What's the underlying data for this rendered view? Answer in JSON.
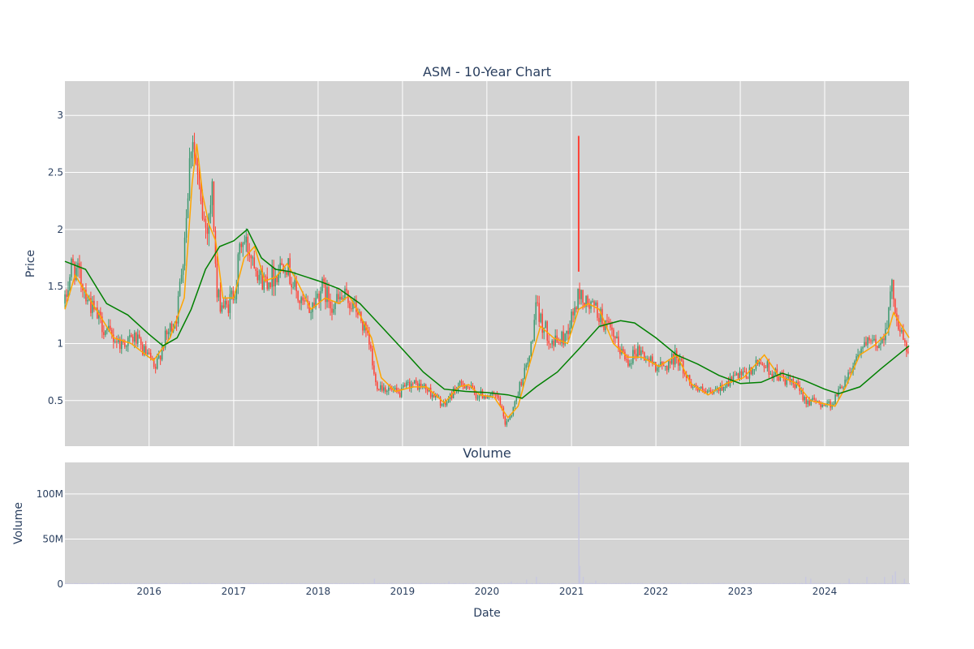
{
  "chart_data": [
    {
      "type": "candlestick",
      "title": "ASM - 10-Year Chart",
      "xlabel": "",
      "ylabel": "Price",
      "x_range": [
        "2015-01-02",
        "2024-12-31"
      ],
      "ylim": [
        0.1,
        3.3
      ],
      "y_ticks": [
        0.5,
        1,
        1.5,
        2,
        2.5,
        3
      ],
      "y_tick_labels": [
        "0.5",
        "1",
        "1.5",
        "2",
        "2.5",
        "3"
      ],
      "grid": true,
      "legend": "none",
      "colors": {
        "increasing": "#3d9970",
        "decreasing": "#ff4136",
        "ma_short": "#ffa500",
        "ma_long": "#008000",
        "plot_bg": "#d3d3d3",
        "grid": "#ffffff"
      },
      "price_path": [
        [
          "2015-01-02",
          1.35
        ],
        [
          "2015-02-01",
          1.7
        ],
        [
          "2015-03-15",
          1.55
        ],
        [
          "2015-05-01",
          1.3
        ],
        [
          "2015-07-01",
          1.1
        ],
        [
          "2015-09-01",
          1.0
        ],
        [
          "2015-11-01",
          1.05
        ],
        [
          "2015-12-01",
          0.95
        ],
        [
          "2016-01-10",
          0.85
        ],
        [
          "2016-01-25",
          0.75
        ],
        [
          "2016-03-01",
          1.0
        ],
        [
          "2016-05-01",
          1.25
        ],
        [
          "2016-06-01",
          1.9
        ],
        [
          "2016-07-05",
          2.9
        ],
        [
          "2016-07-25",
          2.5
        ],
        [
          "2016-08-10",
          2.2
        ],
        [
          "2016-09-05",
          2.0
        ],
        [
          "2016-10-01",
          2.35
        ],
        [
          "2016-10-20",
          1.4
        ],
        [
          "2016-12-01",
          1.3
        ],
        [
          "2017-01-10",
          1.5
        ],
        [
          "2017-02-01",
          1.9
        ],
        [
          "2017-03-01",
          1.85
        ],
        [
          "2017-04-01",
          1.75
        ],
        [
          "2017-05-01",
          1.55
        ],
        [
          "2017-07-01",
          1.6
        ],
        [
          "2017-08-10",
          1.75
        ],
        [
          "2017-09-01",
          1.6
        ],
        [
          "2017-10-15",
          1.35
        ],
        [
          "2017-12-01",
          1.3
        ],
        [
          "2018-01-15",
          1.5
        ],
        [
          "2018-03-01",
          1.35
        ],
        [
          "2018-05-01",
          1.4
        ],
        [
          "2018-06-15",
          1.3
        ],
        [
          "2018-07-15",
          1.15
        ],
        [
          "2018-08-15",
          0.95
        ],
        [
          "2018-09-05",
          0.65
        ],
        [
          "2018-11-01",
          0.6
        ],
        [
          "2018-12-15",
          0.55
        ],
        [
          "2019-02-01",
          0.65
        ],
        [
          "2019-04-01",
          0.62
        ],
        [
          "2019-05-15",
          0.55
        ],
        [
          "2019-07-01",
          0.45
        ],
        [
          "2019-08-15",
          0.6
        ],
        [
          "2019-10-01",
          0.65
        ],
        [
          "2019-11-15",
          0.55
        ],
        [
          "2020-01-01",
          0.55
        ],
        [
          "2020-02-20",
          0.52
        ],
        [
          "2020-03-20",
          0.3
        ],
        [
          "2020-04-20",
          0.4
        ],
        [
          "2020-06-01",
          0.7
        ],
        [
          "2020-07-01",
          0.85
        ],
        [
          "2020-08-01",
          1.3
        ],
        [
          "2020-09-01",
          1.15
        ],
        [
          "2020-10-15",
          1.0
        ],
        [
          "2020-12-01",
          1.05
        ],
        [
          "2021-01-15",
          1.3
        ],
        [
          "2021-02-05",
          1.45
        ],
        [
          "2021-03-01",
          1.35
        ],
        [
          "2021-04-15",
          1.3
        ],
        [
          "2021-06-01",
          1.15
        ],
        [
          "2021-07-15",
          1.0
        ],
        [
          "2021-09-01",
          0.85
        ],
        [
          "2021-10-15",
          0.95
        ],
        [
          "2021-12-01",
          0.85
        ],
        [
          "2022-02-01",
          0.78
        ],
        [
          "2022-04-01",
          0.9
        ],
        [
          "2022-05-15",
          0.7
        ],
        [
          "2022-07-01",
          0.6
        ],
        [
          "2022-08-15",
          0.55
        ],
        [
          "2022-10-01",
          0.6
        ],
        [
          "2022-12-01",
          0.7
        ],
        [
          "2023-02-01",
          0.72
        ],
        [
          "2023-04-01",
          0.85
        ],
        [
          "2023-05-15",
          0.75
        ],
        [
          "2023-07-01",
          0.7
        ],
        [
          "2023-09-01",
          0.62
        ],
        [
          "2023-10-15",
          0.5
        ],
        [
          "2023-12-01",
          0.48
        ],
        [
          "2024-02-01",
          0.47
        ],
        [
          "2024-03-01",
          0.58
        ],
        [
          "2024-04-15",
          0.75
        ],
        [
          "2024-06-01",
          0.95
        ],
        [
          "2024-07-15",
          1.0
        ],
        [
          "2024-09-01",
          1.0
        ],
        [
          "2024-10-01",
          1.25
        ],
        [
          "2024-10-20",
          1.5
        ],
        [
          "2024-11-15",
          1.15
        ],
        [
          "2024-12-31",
          0.9
        ]
      ],
      "spikes": [
        {
          "date": "2021-02-01",
          "low": 1.63,
          "high": 2.82
        }
      ],
      "ma_short": [
        [
          "2015-01-02",
          1.3
        ],
        [
          "2015-02-15",
          1.6
        ],
        [
          "2015-05-01",
          1.35
        ],
        [
          "2015-08-01",
          1.05
        ],
        [
          "2015-10-15",
          1.0
        ],
        [
          "2016-01-20",
          0.85
        ],
        [
          "2016-04-01",
          1.05
        ],
        [
          "2016-06-01",
          1.4
        ],
        [
          "2016-07-05",
          2.4
        ],
        [
          "2016-07-25",
          2.75
        ],
        [
          "2016-08-20",
          2.3
        ],
        [
          "2016-09-15",
          2.05
        ],
        [
          "2016-10-15",
          1.9
        ],
        [
          "2016-11-15",
          1.4
        ],
        [
          "2017-01-01",
          1.4
        ],
        [
          "2017-02-15",
          1.75
        ],
        [
          "2017-04-01",
          1.85
        ],
        [
          "2017-05-15",
          1.55
        ],
        [
          "2017-07-01",
          1.58
        ],
        [
          "2017-08-20",
          1.7
        ],
        [
          "2017-10-01",
          1.55
        ],
        [
          "2017-12-01",
          1.3
        ],
        [
          "2018-02-01",
          1.4
        ],
        [
          "2018-04-01",
          1.35
        ],
        [
          "2018-05-15",
          1.42
        ],
        [
          "2018-07-01",
          1.25
        ],
        [
          "2018-08-20",
          1.05
        ],
        [
          "2018-10-01",
          0.7
        ],
        [
          "2018-12-01",
          0.58
        ],
        [
          "2019-02-15",
          0.62
        ],
        [
          "2019-04-15",
          0.62
        ],
        [
          "2019-07-01",
          0.48
        ],
        [
          "2019-09-01",
          0.62
        ],
        [
          "2019-10-15",
          0.64
        ],
        [
          "2019-12-01",
          0.55
        ],
        [
          "2020-02-01",
          0.53
        ],
        [
          "2020-04-01",
          0.35
        ],
        [
          "2020-05-15",
          0.45
        ],
        [
          "2020-07-01",
          0.8
        ],
        [
          "2020-08-20",
          1.15
        ],
        [
          "2020-10-15",
          1.05
        ],
        [
          "2020-12-15",
          1.0
        ],
        [
          "2021-02-01",
          1.3
        ],
        [
          "2021-03-15",
          1.35
        ],
        [
          "2021-05-01",
          1.3
        ],
        [
          "2021-07-01",
          1.0
        ],
        [
          "2021-09-01",
          0.88
        ],
        [
          "2021-11-01",
          0.88
        ],
        [
          "2022-01-15",
          0.8
        ],
        [
          "2022-04-01",
          0.9
        ],
        [
          "2022-06-01",
          0.65
        ],
        [
          "2022-08-15",
          0.55
        ],
        [
          "2022-11-01",
          0.65
        ],
        [
          "2023-01-15",
          0.7
        ],
        [
          "2023-04-15",
          0.9
        ],
        [
          "2023-06-15",
          0.72
        ],
        [
          "2023-09-01",
          0.65
        ],
        [
          "2023-11-01",
          0.5
        ],
        [
          "2024-02-15",
          0.45
        ],
        [
          "2024-04-01",
          0.62
        ],
        [
          "2024-06-01",
          0.9
        ],
        [
          "2024-08-01",
          0.98
        ],
        [
          "2024-10-01",
          1.1
        ],
        [
          "2024-10-25",
          1.27
        ],
        [
          "2024-12-31",
          1.05
        ]
      ],
      "ma_long": [
        [
          "2015-01-02",
          1.72
        ],
        [
          "2015-04-01",
          1.65
        ],
        [
          "2015-07-01",
          1.35
        ],
        [
          "2015-10-01",
          1.25
        ],
        [
          "2016-01-01",
          1.08
        ],
        [
          "2016-03-01",
          0.98
        ],
        [
          "2016-05-01",
          1.05
        ],
        [
          "2016-07-01",
          1.3
        ],
        [
          "2016-09-01",
          1.65
        ],
        [
          "2016-11-01",
          1.85
        ],
        [
          "2017-01-01",
          1.9
        ],
        [
          "2017-03-01",
          2.0
        ],
        [
          "2017-05-01",
          1.75
        ],
        [
          "2017-07-01",
          1.65
        ],
        [
          "2017-09-01",
          1.63
        ],
        [
          "2018-01-01",
          1.55
        ],
        [
          "2018-04-01",
          1.48
        ],
        [
          "2018-07-01",
          1.35
        ],
        [
          "2018-10-01",
          1.15
        ],
        [
          "2019-01-01",
          0.95
        ],
        [
          "2019-04-01",
          0.75
        ],
        [
          "2019-07-01",
          0.6
        ],
        [
          "2019-10-01",
          0.58
        ],
        [
          "2020-01-01",
          0.57
        ],
        [
          "2020-04-01",
          0.55
        ],
        [
          "2020-06-01",
          0.52
        ],
        [
          "2020-08-01",
          0.62
        ],
        [
          "2020-11-01",
          0.75
        ],
        [
          "2021-02-01",
          0.95
        ],
        [
          "2021-05-01",
          1.15
        ],
        [
          "2021-08-01",
          1.2
        ],
        [
          "2021-10-01",
          1.18
        ],
        [
          "2022-01-01",
          1.05
        ],
        [
          "2022-04-01",
          0.9
        ],
        [
          "2022-07-01",
          0.82
        ],
        [
          "2022-10-01",
          0.72
        ],
        [
          "2023-01-01",
          0.65
        ],
        [
          "2023-04-01",
          0.66
        ],
        [
          "2023-07-01",
          0.74
        ],
        [
          "2023-10-01",
          0.68
        ],
        [
          "2024-01-01",
          0.6
        ],
        [
          "2024-03-01",
          0.56
        ],
        [
          "2024-06-01",
          0.62
        ],
        [
          "2024-09-01",
          0.78
        ],
        [
          "2024-12-31",
          0.98
        ]
      ]
    },
    {
      "type": "bar",
      "title": "Volume",
      "xlabel": "Date",
      "ylabel": "Volume",
      "ylim": [
        0,
        135000000
      ],
      "y_ticks": [
        0,
        50000000,
        100000000
      ],
      "y_tick_labels": [
        "0",
        "50M",
        "100M"
      ],
      "x_ticks": [
        "2016-01-01",
        "2017-01-01",
        "2018-01-01",
        "2019-01-01",
        "2020-01-01",
        "2021-01-01",
        "2022-01-01",
        "2023-01-01",
        "2024-01-01"
      ],
      "x_tick_labels": [
        "2016",
        "2017",
        "2018",
        "2019",
        "2020",
        "2021",
        "2022",
        "2023",
        "2024"
      ],
      "grid": true,
      "colors": {
        "bar": "#c8c8e0"
      },
      "spikes": [
        [
          "2016-06-25",
          2000000
        ],
        [
          "2018-09-01",
          6000000
        ],
        [
          "2019-07-20",
          3000000
        ],
        [
          "2020-04-15",
          3000000
        ],
        [
          "2020-06-20",
          5000000
        ],
        [
          "2020-08-01",
          8000000
        ],
        [
          "2021-02-01",
          130000000
        ],
        [
          "2021-02-05",
          20000000
        ],
        [
          "2021-02-20",
          8000000
        ],
        [
          "2021-04-15",
          4000000
        ],
        [
          "2023-10-10",
          8000000
        ],
        [
          "2023-11-01",
          6000000
        ],
        [
          "2024-04-15",
          6000000
        ],
        [
          "2024-07-01",
          8000000
        ],
        [
          "2024-09-15",
          8000000
        ],
        [
          "2024-10-20",
          10000000
        ],
        [
          "2024-11-01",
          14000000
        ],
        [
          "2024-12-10",
          6000000
        ]
      ]
    }
  ]
}
